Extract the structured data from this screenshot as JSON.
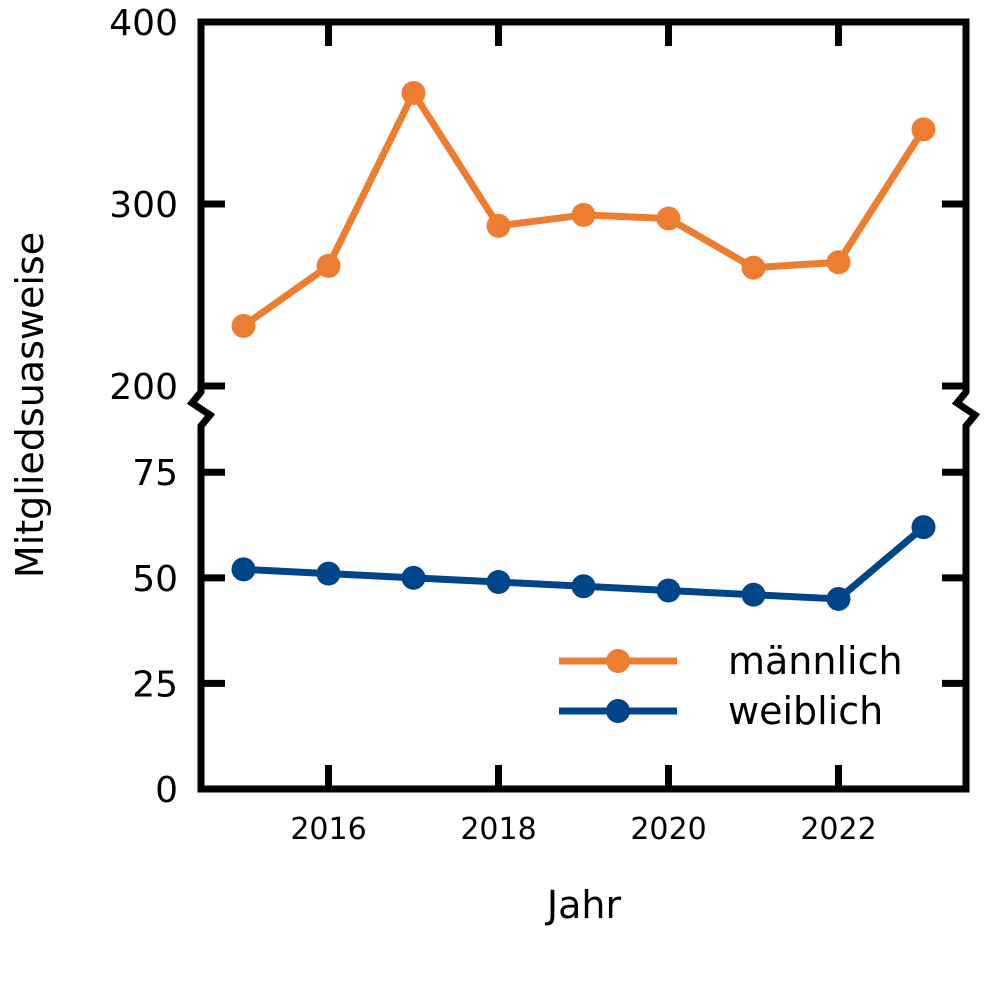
{
  "chart_data": {
    "type": "line",
    "xlabel": "Jahr",
    "ylabel": "Mitgliedsuasweise",
    "x": [
      2015,
      2016,
      2017,
      2018,
      2019,
      2020,
      2021,
      2022,
      2023
    ],
    "x_ticks": [
      "2016",
      "2018",
      "2020",
      "2022"
    ],
    "xlim": [
      2014.5,
      2023.5
    ],
    "y_break": true,
    "y_upper": {
      "ylim": [
        200,
        400
      ],
      "ticks": [
        "200",
        "300",
        "400"
      ]
    },
    "y_lower": {
      "ylim": [
        0,
        85
      ],
      "ticks": [
        "0",
        "25",
        "50",
        "75"
      ]
    },
    "series": [
      {
        "name": "männlich",
        "color": "#ED7D31",
        "segment": "upper",
        "values": [
          233,
          266,
          361,
          288,
          294,
          292,
          265,
          268,
          341
        ]
      },
      {
        "name": "weiblich",
        "color": "#004489",
        "segment": "lower",
        "values": [
          52,
          51,
          50,
          49,
          48,
          47,
          46,
          45,
          62
        ]
      }
    ],
    "legend_position": "bottom-right",
    "grid": false
  }
}
